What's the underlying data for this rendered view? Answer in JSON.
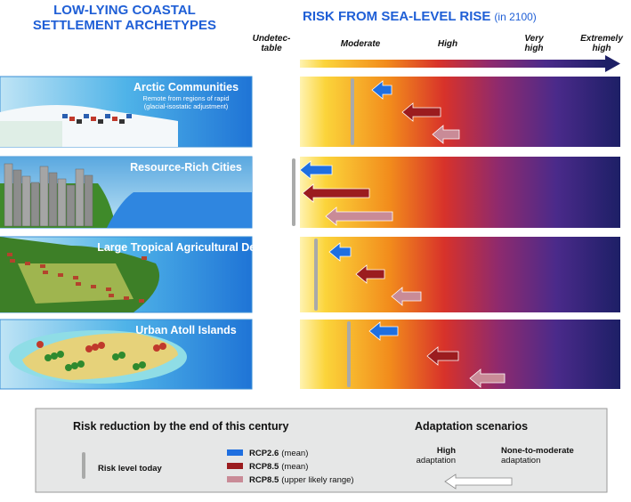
{
  "header": {
    "left_title": [
      "LOW-LYING COASTAL",
      "SETTLEMENT ARCHETYPES"
    ],
    "right_title": "RISK FROM SEA-LEVEL RISE",
    "right_subtitle": "(in 2100)"
  },
  "scale": [
    [
      "Undetec-",
      "table"
    ],
    [
      "Moderate"
    ],
    [
      "High"
    ],
    [
      "Very",
      "high"
    ],
    [
      "Extremely",
      "high"
    ]
  ],
  "rows": [
    {
      "title": "Arctic Communities",
      "subtitle": [
        "Remote from regions of rapid",
        "(glacial-isostatic adjustment)"
      ]
    },
    {
      "title": "Resource-Rich Cities"
    },
    {
      "title": "Large Tropical Agricultural Deltas"
    },
    {
      "title": "Urban Atoll Islands"
    }
  ],
  "legend": {
    "title": "Risk reduction by the end of this century",
    "risk_today": "Risk level today",
    "entries": [
      {
        "name": "RCP2.6",
        "note": "(mean)"
      },
      {
        "name": "RCP8.5",
        "note": "(mean)"
      },
      {
        "name": "RCP8.5",
        "note": "(upper likely range)"
      }
    ],
    "adaptation_title": "Adaptation scenarios",
    "high": [
      "High",
      "adaptation"
    ],
    "none": [
      "None-to-moderate",
      "adaptation"
    ]
  }
}
